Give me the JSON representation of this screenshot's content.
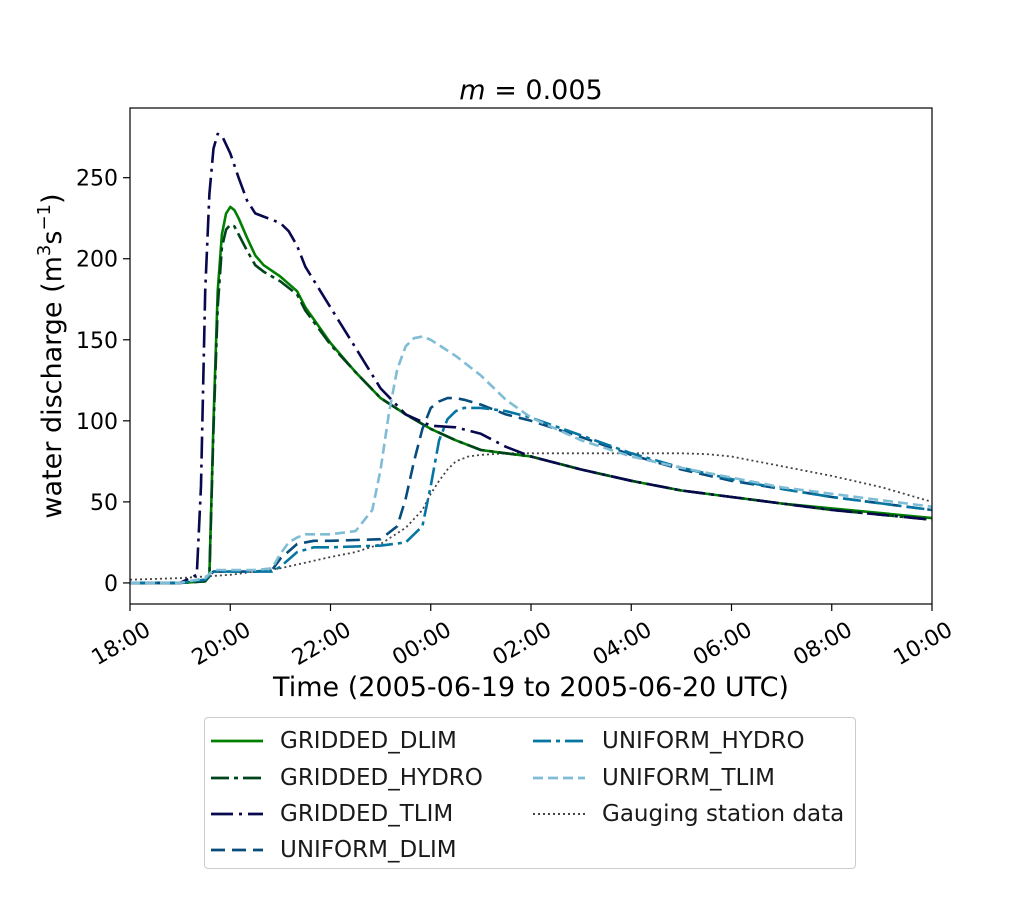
{
  "chart_data": {
    "type": "line",
    "title": "m = 0.005",
    "title_parts": {
      "var": "m",
      "rest": " = 0.005"
    },
    "xlabel": "Time (2005-06-19 to 2005-06-20 UTC)",
    "ylabel": "water discharge (m³s⁻¹)",
    "ylabel_parts": {
      "pre": "water discharge (m",
      "sup1": "3",
      "mid": "s",
      "sup2": "−1",
      "post": ")"
    },
    "x_unit": "hour since 2005-06-19 18:00 UTC",
    "xlim": [
      "2005-06-19 18:00",
      "2005-06-20 10:00"
    ],
    "ylim": [
      -13,
      293
    ],
    "x_ticks": [
      "18:00",
      "20:00",
      "22:00",
      "00:00",
      "02:00",
      "04:00",
      "06:00",
      "08:00",
      "10:00"
    ],
    "y_ticks": [
      0,
      50,
      100,
      150,
      200,
      250
    ],
    "grid": false,
    "legend_position": "below",
    "series": [
      {
        "name": "GRIDDED_DLIM",
        "color": "#008000",
        "dash": "solid",
        "x": [
          "19:00",
          "19:30",
          "19:35",
          "19:40",
          "19:45",
          "19:50",
          "19:55",
          "20:00",
          "20:05",
          "20:10",
          "20:20",
          "20:30",
          "20:40",
          "21:00",
          "21:20",
          "21:30",
          "22:00",
          "22:30",
          "23:00",
          "23:30",
          "00:00",
          "00:30",
          "01:00",
          "01:30",
          "02:00",
          "03:00",
          "04:00",
          "05:00",
          "06:00",
          "07:00",
          "08:00",
          "09:00",
          "10:00"
        ],
        "values": [
          0,
          1,
          5,
          100,
          180,
          215,
          228,
          232,
          230,
          225,
          213,
          202,
          196,
          189,
          180,
          170,
          148,
          130,
          114,
          104,
          95,
          88,
          82,
          80,
          78,
          70,
          63,
          57,
          53,
          49,
          46,
          43,
          40
        ]
      },
      {
        "name": "GRIDDED_HYDRO",
        "color": "#00441b",
        "dash": "dashdot",
        "x": [
          "19:00",
          "19:30",
          "19:35",
          "19:40",
          "19:45",
          "19:50",
          "19:55",
          "20:00",
          "20:05",
          "20:10",
          "20:20",
          "20:30",
          "20:40",
          "21:00",
          "21:20",
          "21:30",
          "22:00",
          "22:30",
          "23:00",
          "23:30",
          "00:00",
          "00:30",
          "01:00",
          "01:30",
          "02:00",
          "03:00",
          "04:00",
          "05:00",
          "06:00",
          "07:00",
          "08:00",
          "09:00",
          "10:00"
        ],
        "values": [
          0,
          1,
          4,
          95,
          170,
          207,
          218,
          221,
          220,
          215,
          205,
          196,
          192,
          186,
          178,
          168,
          147,
          130,
          114,
          104,
          95,
          88,
          82,
          80,
          78,
          70,
          63,
          57,
          53,
          49,
          45,
          42,
          39
        ]
      },
      {
        "name": "GRIDDED_TLIM",
        "color": "#08084e",
        "dash": "dashdot2",
        "x": [
          "18:00",
          "19:00",
          "19:20",
          "19:25",
          "19:30",
          "19:35",
          "19:40",
          "19:45",
          "19:50",
          "20:00",
          "20:10",
          "20:20",
          "20:30",
          "20:40",
          "20:50",
          "21:00",
          "21:10",
          "21:20",
          "21:30",
          "22:00",
          "22:30",
          "23:00",
          "23:30",
          "00:00",
          "00:30",
          "01:00",
          "01:30",
          "02:00",
          "03:00",
          "04:00",
          "05:00",
          "06:00",
          "07:00",
          "08:00",
          "09:00",
          "10:00"
        ],
        "values": [
          0,
          0,
          5,
          60,
          180,
          240,
          268,
          277,
          276,
          265,
          250,
          236,
          228,
          226,
          224,
          222,
          217,
          208,
          195,
          170,
          145,
          120,
          104,
          97,
          96,
          92,
          84,
          78,
          70,
          63,
          57,
          53,
          49,
          45,
          42,
          39
        ]
      },
      {
        "name": "UNIFORM_DLIM",
        "color": "#084c7d",
        "dash": "dashed",
        "x": [
          "18:00",
          "19:00",
          "19:30",
          "19:40",
          "20:00",
          "20:30",
          "20:50",
          "21:00",
          "21:20",
          "21:40",
          "22:00",
          "23:00",
          "23:20",
          "23:30",
          "23:40",
          "23:50",
          "00:00",
          "00:10",
          "00:20",
          "00:30",
          "00:40",
          "01:00",
          "01:30",
          "02:00",
          "03:00",
          "04:00",
          "05:00",
          "06:00",
          "07:00",
          "08:00",
          "09:00",
          "10:00"
        ],
        "values": [
          0,
          0,
          2,
          7,
          7,
          7,
          8,
          15,
          24,
          26,
          26,
          27,
          35,
          52,
          75,
          95,
          108,
          112,
          114,
          114,
          113,
          110,
          104,
          100,
          90,
          79,
          70,
          63,
          58,
          53,
          49,
          45
        ]
      },
      {
        "name": "UNIFORM_HYDRO",
        "color": "#0576a1",
        "dash": "dashdot",
        "x": [
          "18:00",
          "19:00",
          "19:30",
          "19:40",
          "20:00",
          "20:30",
          "20:50",
          "21:00",
          "21:20",
          "21:40",
          "22:00",
          "23:00",
          "23:30",
          "23:50",
          "00:00",
          "00:10",
          "00:20",
          "00:30",
          "00:40",
          "01:00",
          "01:30",
          "02:00",
          "03:00",
          "04:00",
          "05:00",
          "06:00",
          "07:00",
          "08:00",
          "09:00",
          "10:00"
        ],
        "values": [
          0,
          0,
          2,
          7,
          7,
          7,
          7,
          10,
          19,
          22,
          22,
          23,
          25,
          35,
          60,
          88,
          101,
          106,
          108,
          108,
          106,
          102,
          91,
          80,
          71,
          64,
          58,
          53,
          49,
          45
        ]
      },
      {
        "name": "UNIFORM_TLIM",
        "color": "#7fbcd5",
        "dash": "dashed2",
        "x": [
          "18:00",
          "19:00",
          "19:30",
          "19:40",
          "20:00",
          "20:30",
          "20:50",
          "21:00",
          "21:10",
          "21:20",
          "21:30",
          "22:00",
          "22:30",
          "22:50",
          "23:00",
          "23:10",
          "23:20",
          "23:30",
          "23:40",
          "23:50",
          "00:00",
          "00:15",
          "00:30",
          "01:00",
          "01:30",
          "02:00",
          "03:00",
          "04:00",
          "05:00",
          "06:00",
          "07:00",
          "08:00",
          "09:00",
          "10:00"
        ],
        "values": [
          0,
          0,
          3,
          8,
          8,
          8,
          9,
          18,
          25,
          28,
          30,
          30,
          32,
          45,
          70,
          105,
          132,
          146,
          151,
          152,
          150,
          145,
          140,
          128,
          113,
          102,
          88,
          78,
          71,
          65,
          59,
          55,
          51,
          47
        ]
      },
      {
        "name": "Gauging station data",
        "color": "#444444",
        "dash": "dotted",
        "x": [
          "18:00",
          "19:00",
          "20:00",
          "21:00",
          "22:00",
          "22:30",
          "23:00",
          "23:30",
          "23:50",
          "00:00",
          "00:10",
          "00:20",
          "00:30",
          "00:45",
          "01:00",
          "01:30",
          "02:00",
          "03:00",
          "04:00",
          "05:00",
          "05:30",
          "06:00",
          "06:30",
          "07:00",
          "08:00",
          "09:00",
          "10:00"
        ],
        "values": [
          2,
          3,
          5,
          9,
          16,
          19,
          24,
          34,
          45,
          55,
          63,
          70,
          75,
          78,
          79,
          80,
          80,
          80,
          80,
          80,
          79.5,
          78,
          75,
          72,
          66,
          59,
          50
        ]
      }
    ]
  }
}
